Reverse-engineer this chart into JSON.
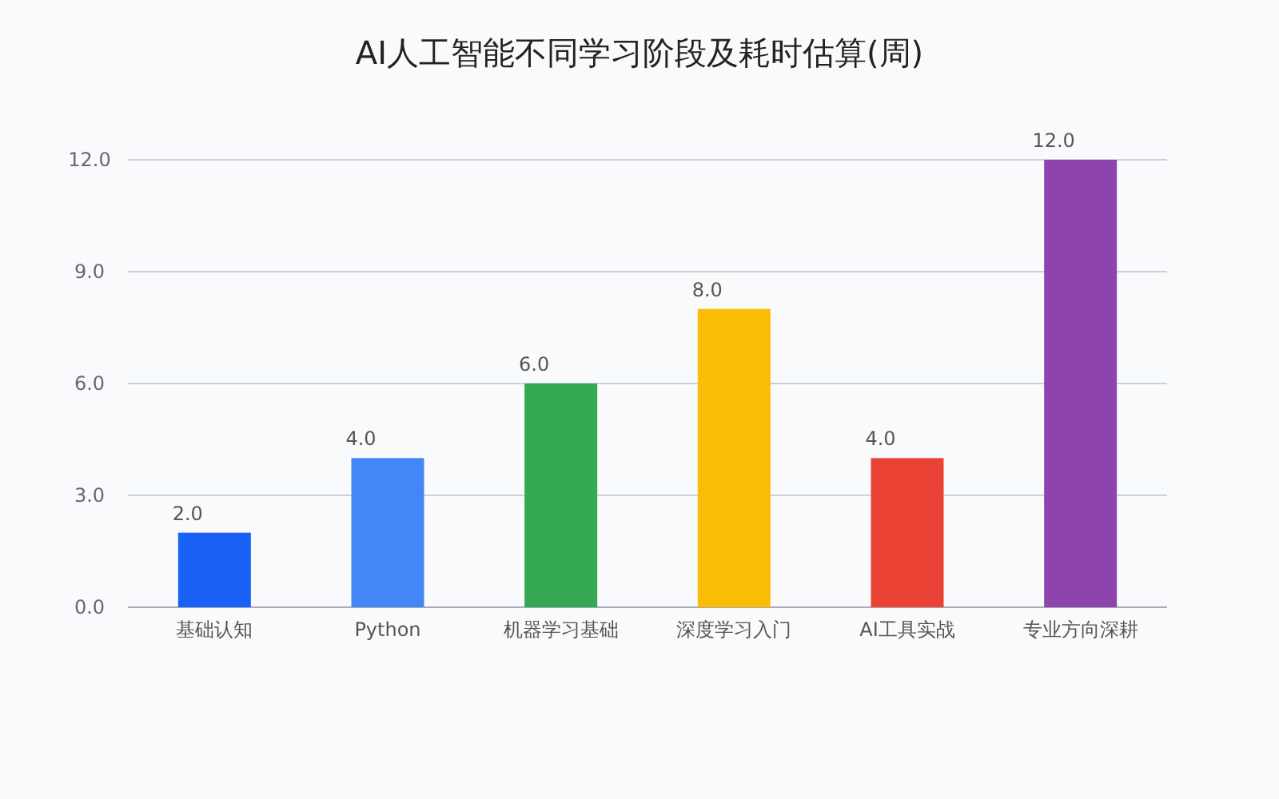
{
  "chart_data": {
    "type": "bar",
    "title": "AI人工智能不同学习阶段及耗时估算(周)",
    "categories": [
      "基础认知",
      "Python",
      "机器学习基础",
      "深度学习入门",
      "AI工具实战",
      "专业方向深耕"
    ],
    "values": [
      2,
      4,
      6,
      8,
      4,
      12
    ],
    "colors": [
      "#1a62f5",
      "#4287f5",
      "#34a853",
      "#fbbc05",
      "#ea4335",
      "#8e44ad"
    ],
    "value_labels": [
      "2.0",
      "4.0",
      "6.0",
      "8.0",
      "4.0",
      "12.0"
    ],
    "ylim": [
      0,
      12
    ],
    "yticks": [
      {
        "value": 0,
        "label": "0.0"
      },
      {
        "value": 3,
        "label": "3.0"
      },
      {
        "value": 6,
        "label": "6.0"
      },
      {
        "value": 9,
        "label": "9.0"
      },
      {
        "value": 12,
        "label": "12.0"
      }
    ],
    "grid": "y"
  }
}
